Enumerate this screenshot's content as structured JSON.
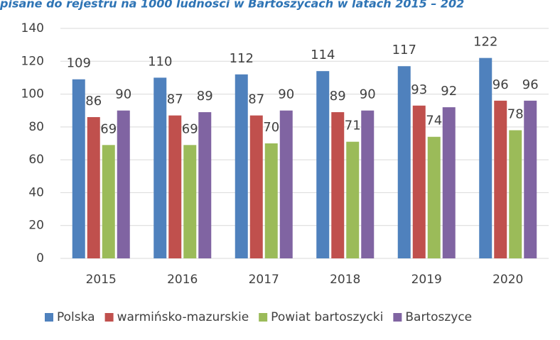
{
  "chart_data": {
    "type": "bar",
    "title": "pisane do rejestru na 1000 ludności w Bartoszycach w latach 2015 – 202",
    "categories": [
      "2015",
      "2016",
      "2017",
      "2018",
      "2019",
      "2020"
    ],
    "series": [
      {
        "name": "Polska",
        "color": "#4f81bd",
        "values": [
          109,
          110,
          112,
          114,
          117,
          122
        ]
      },
      {
        "name": "warmińsko-mazurskie",
        "color": "#c0504d",
        "values": [
          86,
          87,
          87,
          89,
          93,
          96
        ]
      },
      {
        "name": "Powiat bartoszycki",
        "color": "#9bbb59",
        "values": [
          69,
          69,
          70,
          71,
          74,
          78
        ]
      },
      {
        "name": "Bartoszyce",
        "color": "#8064a2",
        "values": [
          90,
          89,
          90,
          90,
          92,
          96
        ]
      }
    ],
    "ylim": [
      0,
      140
    ],
    "yticks": [
      0,
      20,
      40,
      60,
      80,
      100,
      120,
      140
    ],
    "grid": true,
    "legend": "bottom"
  }
}
